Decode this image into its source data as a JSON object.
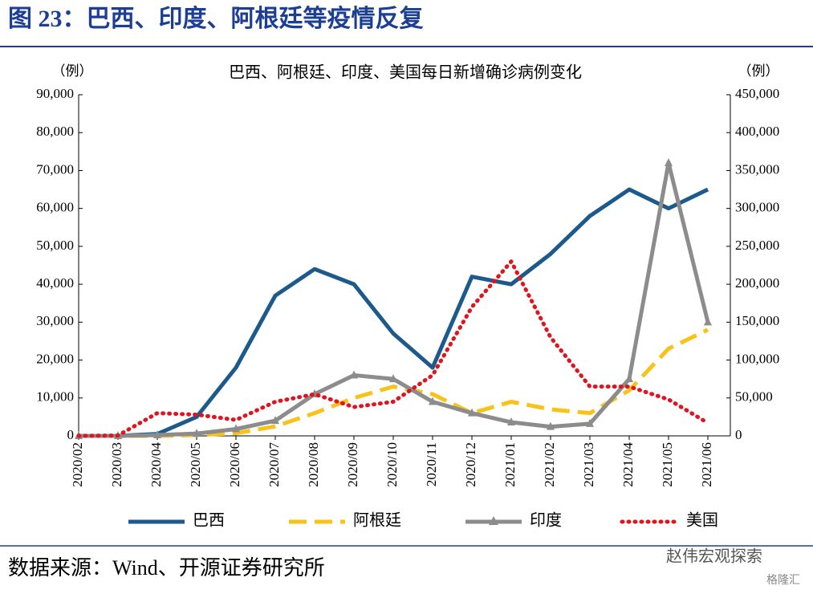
{
  "figure_title": "图 23：巴西、印度、阿根廷等疫情反复",
  "chart_data": {
    "type": "line",
    "title": "巴西、阿根廷、印度、美国每日新增确诊病例变化",
    "ylabel": "（例）",
    "y2label": "（例）",
    "categories": [
      "2020/02",
      "2020/03",
      "2020/04",
      "2020/05",
      "2020/06",
      "2020/07",
      "2020/08",
      "2020/09",
      "2020/10",
      "2020/11",
      "2020/12",
      "2021/01",
      "2021/02",
      "2021/03",
      "2021/04",
      "2021/05",
      "2021/06"
    ],
    "series": [
      {
        "name": "巴西",
        "color": "#1d5a8c",
        "style": "solid",
        "axis": "y",
        "values": [
          0,
          0,
          500,
          5000,
          18000,
          37000,
          44000,
          40000,
          27000,
          18000,
          42000,
          40000,
          48000,
          58000,
          65000,
          60000,
          65000
        ]
      },
      {
        "name": "阿根廷",
        "color": "#f7c31b",
        "style": "dashed",
        "axis": "y",
        "values": [
          0,
          0,
          0,
          200,
          700,
          2500,
          6000,
          10000,
          13000,
          11000,
          6000,
          9000,
          7000,
          6000,
          12000,
          23000,
          28000
        ]
      },
      {
        "name": "印度",
        "color": "#8c8c8c",
        "style": "triangle",
        "axis": "y2",
        "values": [
          0,
          0,
          1000,
          3000,
          9000,
          20000,
          55000,
          80000,
          75000,
          45000,
          30000,
          18000,
          12000,
          16000,
          75000,
          360000,
          150000
        ]
      },
      {
        "name": "美国",
        "color": "#e0141e",
        "style": "dotted",
        "axis": "y2",
        "values": [
          0,
          500,
          30000,
          28000,
          21000,
          45000,
          55000,
          38000,
          45000,
          80000,
          170000,
          230000,
          130000,
          65000,
          65000,
          48000,
          17000
        ]
      }
    ],
    "ylim": [
      0,
      90000
    ],
    "yticks": [
      0,
      {
        "value": 10000,
        "label": "10,000"
      },
      {
        "value": 20000,
        "label": "20,000"
      },
      {
        "value": 30000,
        "label": "30,000"
      },
      {
        "value": 40000,
        "label": "40,000"
      },
      {
        "value": 50000,
        "label": "50,000"
      },
      {
        "value": 60000,
        "label": "60,000"
      },
      {
        "value": 70000,
        "label": "70,000"
      },
      {
        "value": 80000,
        "label": "80,000"
      },
      {
        "value": 90000,
        "label": "90,000"
      }
    ],
    "y2lim": [
      0,
      450000
    ],
    "y2ticks": [
      0,
      {
        "value": 50000,
        "label": "50,000"
      },
      {
        "value": 100000,
        "label": "100,000"
      },
      {
        "value": 150000,
        "label": "150,000"
      },
      {
        "value": 200000,
        "label": "200,000"
      },
      {
        "value": 250000,
        "label": "250,000"
      },
      {
        "value": 300000,
        "label": "300,000"
      },
      {
        "value": 350000,
        "label": "350,000"
      },
      {
        "value": 400000,
        "label": "400,000"
      },
      {
        "value": 450000,
        "label": "450,000"
      }
    ],
    "legend": "bottom"
  },
  "source": "数据来源：Wind、开源证券研究所",
  "watermark": [
    "赵伟宏观探索",
    "格隆汇"
  ]
}
